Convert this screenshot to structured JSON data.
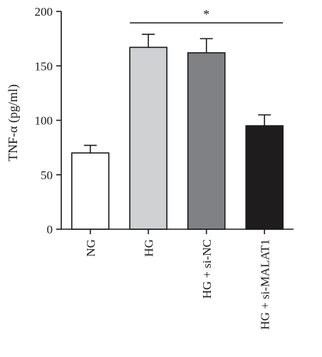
{
  "chart_data": {
    "type": "bar",
    "categories": [
      "NG",
      "HG",
      "HG + si-NC",
      "HG + si-MALAT1"
    ],
    "values": [
      70,
      167,
      162,
      95
    ],
    "errors": [
      7,
      12,
      13,
      10
    ],
    "bar_colors": [
      "#ffffff",
      "#d0d1d3",
      "#808184",
      "#1e1c1d"
    ],
    "ylabel": "TNF-α (pg/ml)",
    "ylim": [
      0,
      200
    ],
    "yticks": [
      "0",
      "50",
      "100",
      "150",
      "200"
    ],
    "grid": false,
    "significance": {
      "from": 1,
      "to": 3,
      "label": "*"
    }
  }
}
